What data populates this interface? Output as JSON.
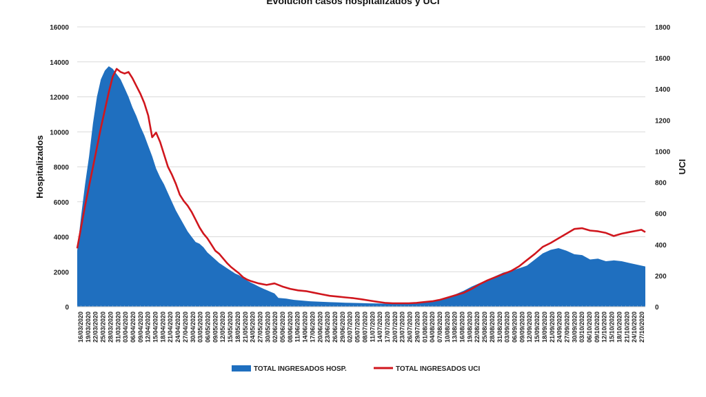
{
  "chart_data": {
    "type": "area",
    "title": "Evolución casos hospitalizados y UCI",
    "ylabel": "Hospitalizados",
    "y2label": "UCI",
    "ylim": [
      0,
      16000
    ],
    "y2lim": [
      0,
      1800
    ],
    "yticks": [
      "0",
      "2000",
      "4000",
      "6000",
      "8000",
      "10000",
      "12000",
      "14000",
      "16000"
    ],
    "y2ticks": [
      "0",
      "200",
      "400",
      "600",
      "800",
      "1000",
      "1200",
      "1400",
      "1600",
      "1800"
    ],
    "grid": true,
    "legend_position": "bottom-center",
    "x_labels": [
      "16/03/2020",
      "19/03/2020",
      "22/03/2020",
      "25/03/2020",
      "28/03/2020",
      "31/03/2020",
      "03/04/2020",
      "06/04/2020",
      "09/04/2020",
      "12/04/2020",
      "15/04/2020",
      "18/04/2020",
      "21/04/2020",
      "24/04/2020",
      "27/04/2020",
      "30/04/2020",
      "03/05/2020",
      "06/05/2020",
      "09/05/2020",
      "12/05/2020",
      "15/05/2020",
      "18/05/2020",
      "21/05/2020",
      "24/05/2020",
      "27/05/2020",
      "30/05/2020",
      "02/06/2020",
      "05/06/2020",
      "08/06/2020",
      "11/06/2020",
      "14/06/2020",
      "17/06/2020",
      "20/06/2020",
      "23/06/2020",
      "26/06/2020",
      "29/06/2020",
      "02/07/2020",
      "05/07/2020",
      "08/07/2020",
      "11/07/2020",
      "14/07/2020",
      "17/07/2020",
      "20/07/2020",
      "23/07/2020",
      "26/07/2020",
      "29/07/2020",
      "01/08/2020",
      "04/08/2020",
      "07/08/2020",
      "10/08/2020",
      "13/08/2020",
      "16/08/2020",
      "19/08/2020",
      "22/08/2020",
      "25/08/2020",
      "28/08/2020",
      "31/08/2020",
      "03/09/2020",
      "06/09/2020",
      "09/09/2020",
      "12/09/2020",
      "15/09/2020",
      "18/09/2020",
      "21/09/2020",
      "24/09/2020",
      "27/09/2020",
      "30/09/2020",
      "03/10/2020",
      "06/10/2020",
      "09/10/2020",
      "12/10/2020",
      "15/10/2020",
      "18/10/2020",
      "21/10/2020",
      "24/10/2020",
      "27/10/2020"
    ],
    "series": [
      {
        "name": "TOTAL INGRESADOS HOSP.",
        "axis": "left",
        "color": "#1f6fbf",
        "points": [
          [
            0,
            3200
          ],
          [
            1,
            5200
          ],
          [
            2,
            7000
          ],
          [
            3,
            8600
          ],
          [
            4,
            10500
          ],
          [
            5,
            12000
          ],
          [
            6,
            13000
          ],
          [
            7,
            13500
          ],
          [
            8,
            13750
          ],
          [
            9,
            13600
          ],
          [
            10,
            13300
          ],
          [
            11,
            13000
          ],
          [
            12,
            12500
          ],
          [
            13,
            12000
          ],
          [
            14,
            11400
          ],
          [
            15,
            10900
          ],
          [
            16,
            10300
          ],
          [
            17,
            9800
          ],
          [
            18,
            9200
          ],
          [
            19,
            8600
          ],
          [
            20,
            7900
          ],
          [
            21,
            7400
          ],
          [
            22,
            7000
          ],
          [
            23,
            6500
          ],
          [
            24,
            6000
          ],
          [
            25,
            5500
          ],
          [
            26,
            5100
          ],
          [
            27,
            4700
          ],
          [
            28,
            4300
          ],
          [
            29,
            4000
          ],
          [
            30,
            3700
          ],
          [
            31,
            3600
          ],
          [
            32,
            3400
          ],
          [
            33,
            3100
          ],
          [
            34,
            2900
          ],
          [
            35,
            2700
          ],
          [
            36,
            2500
          ],
          [
            37,
            2350
          ],
          [
            38,
            2200
          ],
          [
            39,
            2050
          ],
          [
            40,
            1900
          ],
          [
            41,
            1800
          ],
          [
            42,
            1650
          ],
          [
            43,
            1500
          ],
          [
            44,
            1380
          ],
          [
            45,
            1270
          ],
          [
            46,
            1150
          ],
          [
            47,
            1050
          ],
          [
            48,
            950
          ],
          [
            49,
            850
          ],
          [
            50,
            760
          ],
          [
            51,
            500
          ],
          [
            52,
            480
          ],
          [
            53,
            460
          ],
          [
            54,
            420
          ],
          [
            55,
            390
          ],
          [
            56,
            370
          ],
          [
            57,
            350
          ],
          [
            58,
            330
          ],
          [
            59,
            310
          ],
          [
            60,
            300
          ],
          [
            62,
            280
          ],
          [
            64,
            260
          ],
          [
            66,
            245
          ],
          [
            68,
            230
          ],
          [
            70,
            215
          ],
          [
            72,
            205
          ],
          [
            74,
            195
          ],
          [
            76,
            185
          ],
          [
            78,
            175
          ],
          [
            80,
            170
          ],
          [
            82,
            170
          ],
          [
            84,
            180
          ],
          [
            86,
            200
          ],
          [
            88,
            240
          ],
          [
            90,
            320
          ],
          [
            92,
            420
          ],
          [
            94,
            560
          ],
          [
            96,
            720
          ],
          [
            98,
            920
          ],
          [
            100,
            1150
          ],
          [
            102,
            1350
          ],
          [
            104,
            1550
          ],
          [
            106,
            1750
          ],
          [
            108,
            1950
          ],
          [
            110,
            2050
          ],
          [
            112,
            2200
          ],
          [
            114,
            2350
          ],
          [
            116,
            2700
          ],
          [
            118,
            3050
          ],
          [
            120,
            3250
          ],
          [
            122,
            3350
          ],
          [
            124,
            3200
          ],
          [
            126,
            3000
          ],
          [
            128,
            2950
          ],
          [
            130,
            2700
          ],
          [
            132,
            2750
          ],
          [
            134,
            2600
          ],
          [
            136,
            2650
          ],
          [
            138,
            2600
          ],
          [
            140,
            2500
          ],
          [
            142,
            2400
          ],
          [
            144,
            2300
          ]
        ]
      },
      {
        "name": "TOTAL INGRESADOS UCI",
        "axis": "right",
        "color": "#d0161d",
        "points": [
          [
            0,
            375
          ],
          [
            2,
            650
          ],
          [
            4,
            900
          ],
          [
            6,
            1150
          ],
          [
            8,
            1380
          ],
          [
            9,
            1480
          ],
          [
            10,
            1530
          ],
          [
            11,
            1510
          ],
          [
            12,
            1500
          ],
          [
            13,
            1510
          ],
          [
            14,
            1470
          ],
          [
            15,
            1420
          ],
          [
            16,
            1370
          ],
          [
            17,
            1310
          ],
          [
            18,
            1230
          ],
          [
            19,
            1090
          ],
          [
            20,
            1120
          ],
          [
            21,
            1060
          ],
          [
            22,
            980
          ],
          [
            23,
            900
          ],
          [
            24,
            850
          ],
          [
            25,
            790
          ],
          [
            26,
            720
          ],
          [
            27,
            680
          ],
          [
            28,
            650
          ],
          [
            29,
            610
          ],
          [
            30,
            560
          ],
          [
            31,
            510
          ],
          [
            32,
            470
          ],
          [
            33,
            440
          ],
          [
            34,
            400
          ],
          [
            35,
            360
          ],
          [
            36,
            340
          ],
          [
            37,
            310
          ],
          [
            38,
            280
          ],
          [
            39,
            255
          ],
          [
            40,
            235
          ],
          [
            41,
            215
          ],
          [
            42,
            190
          ],
          [
            43,
            175
          ],
          [
            44,
            165
          ],
          [
            46,
            150
          ],
          [
            48,
            140
          ],
          [
            50,
            150
          ],
          [
            52,
            130
          ],
          [
            54,
            115
          ],
          [
            56,
            105
          ],
          [
            58,
            100
          ],
          [
            60,
            90
          ],
          [
            62,
            80
          ],
          [
            64,
            70
          ],
          [
            66,
            65
          ],
          [
            68,
            60
          ],
          [
            70,
            55
          ],
          [
            72,
            48
          ],
          [
            74,
            40
          ],
          [
            76,
            32
          ],
          [
            78,
            25
          ],
          [
            80,
            22
          ],
          [
            82,
            22
          ],
          [
            84,
            22
          ],
          [
            86,
            25
          ],
          [
            88,
            30
          ],
          [
            90,
            35
          ],
          [
            92,
            45
          ],
          [
            94,
            60
          ],
          [
            96,
            75
          ],
          [
            98,
            90
          ],
          [
            100,
            115
          ],
          [
            102,
            145
          ],
          [
            104,
            170
          ],
          [
            106,
            190
          ],
          [
            108,
            210
          ],
          [
            110,
            230
          ],
          [
            112,
            260
          ],
          [
            114,
            300
          ],
          [
            116,
            340
          ],
          [
            118,
            385
          ],
          [
            120,
            410
          ],
          [
            122,
            440
          ],
          [
            124,
            470
          ],
          [
            126,
            500
          ],
          [
            128,
            505
          ],
          [
            130,
            490
          ],
          [
            132,
            485
          ],
          [
            134,
            475
          ],
          [
            136,
            455
          ],
          [
            138,
            470
          ],
          [
            140,
            480
          ],
          [
            142,
            490
          ],
          [
            143,
            495
          ],
          [
            144,
            480
          ]
        ]
      }
    ]
  }
}
